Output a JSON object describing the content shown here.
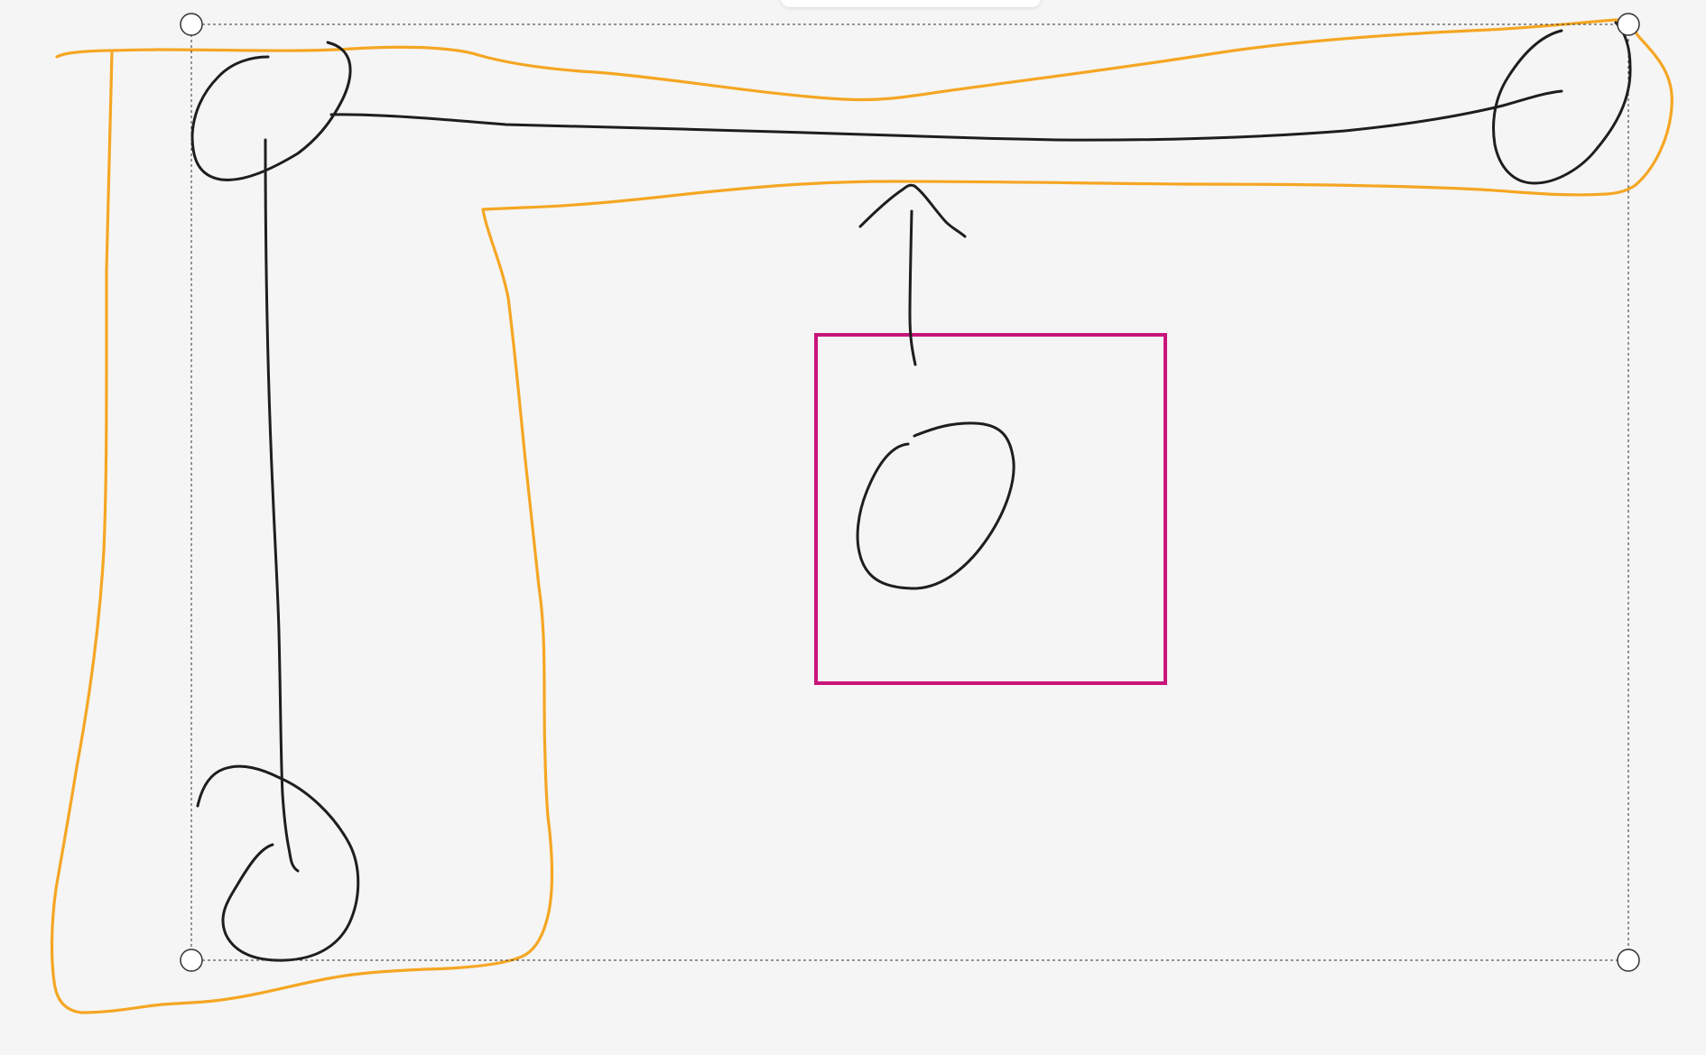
{
  "colors": {
    "background": "#f5f5f5",
    "ink": "#1e1e1e",
    "highlighter": "#f5a623",
    "frame": "#c8157a",
    "selection": "#333333",
    "handle_fill": "#ffffff"
  },
  "canvas": {
    "tool_panel": "top-toolbar-panel",
    "selection_handles": [
      "resize-handle-top-left",
      "resize-handle-top-right",
      "resize-handle-bottom-left",
      "resize-handle-bottom-right"
    ]
  }
}
